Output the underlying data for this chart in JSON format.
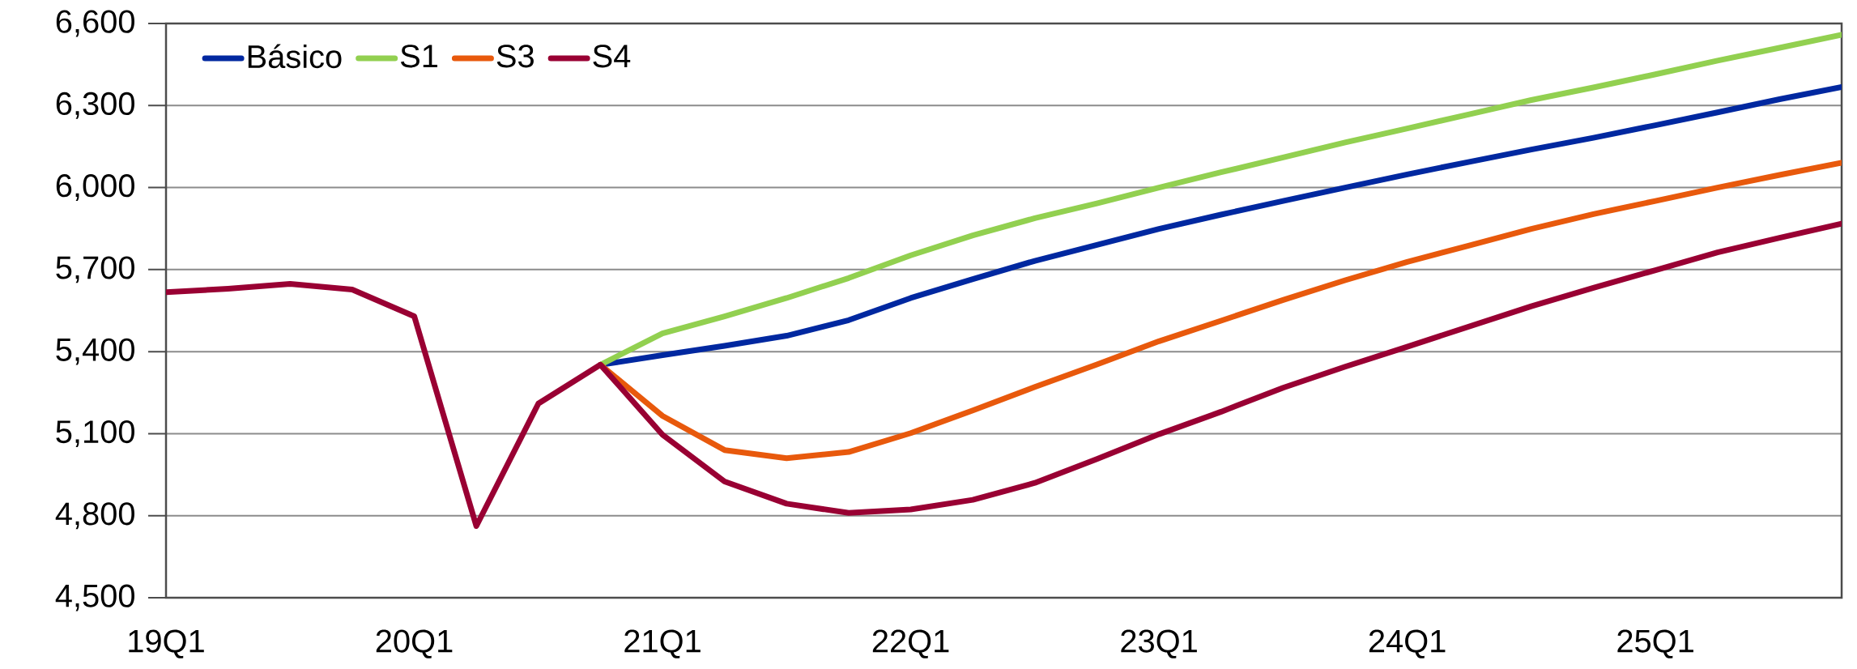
{
  "chart_data": {
    "type": "line",
    "categories": [
      "19Q1",
      null,
      null,
      null,
      "20Q1",
      null,
      null,
      null,
      "21Q1",
      null,
      null,
      null,
      "22Q1",
      null,
      null,
      null,
      "23Q1",
      null,
      null,
      null,
      "24Q1",
      null,
      null,
      null,
      "25Q1",
      null,
      null,
      null
    ],
    "series": [
      {
        "name": "Básico",
        "color": "#0028a0",
        "values": [
          null,
          null,
          null,
          null,
          null,
          null,
          null,
          5352,
          5387,
          5421,
          5458,
          5515,
          5596,
          5665,
          5732,
          5790,
          5849,
          5901,
          5951,
          6000,
          6048,
          6094,
          6139,
          6182,
          6228,
          6275,
          6323,
          6368
        ]
      },
      {
        "name": "S1",
        "color": "#92d050",
        "values": [
          null,
          null,
          null,
          null,
          null,
          null,
          null,
          5352,
          5467,
          5529,
          5596,
          5669,
          5752,
          5825,
          5888,
          5942,
          6000,
          6056,
          6110,
          6165,
          6216,
          6268,
          6320,
          6366,
          6414,
          6464,
          6511,
          6559
        ]
      },
      {
        "name": "S3",
        "color": "#e8590c",
        "values": [
          null,
          null,
          null,
          null,
          null,
          null,
          null,
          5352,
          5165,
          5040,
          5010,
          5033,
          5102,
          5185,
          5271,
          5353,
          5438,
          5513,
          5589,
          5661,
          5728,
          5788,
          5849,
          5903,
          5951,
          6000,
          6046,
          6091
        ]
      },
      {
        "name": "S4",
        "color": "#990033",
        "values": [
          5617,
          5630,
          5648,
          5627,
          5529,
          4762,
          5210,
          5352,
          5096,
          4925,
          4844,
          4810,
          4823,
          4858,
          4920,
          5007,
          5098,
          5180,
          5268,
          5345,
          5418,
          5492,
          5566,
          5633,
          5698,
          5763,
          5816,
          5868
        ]
      }
    ],
    "ylim": [
      4500,
      6600
    ],
    "yticks": [
      {
        "value": 4500,
        "label": "4,500"
      },
      {
        "value": 4800,
        "label": "4,800"
      },
      {
        "value": 5100,
        "label": "5,100"
      },
      {
        "value": 5400,
        "label": "5,400"
      },
      {
        "value": 5700,
        "label": "5,700"
      },
      {
        "value": 6000,
        "label": "6,000"
      },
      {
        "value": 6300,
        "label": "6,300"
      },
      {
        "value": 6600,
        "label": "6,600"
      }
    ],
    "grid": "y",
    "legend": "top left",
    "marker": "none",
    "line_style": "solid"
  }
}
